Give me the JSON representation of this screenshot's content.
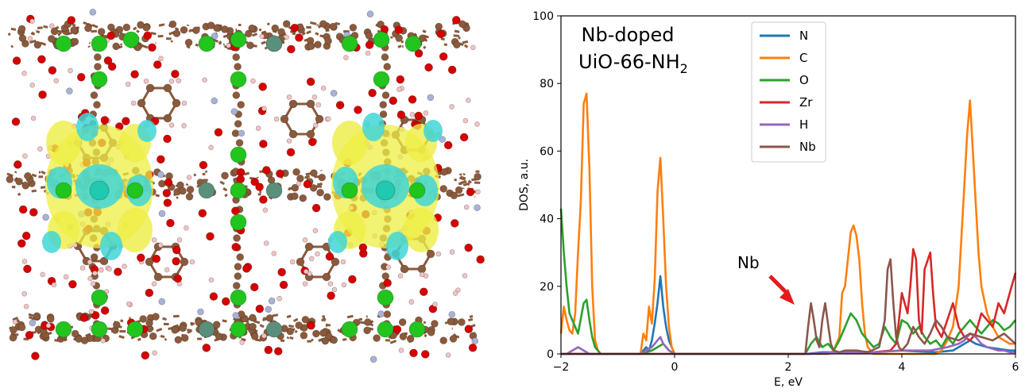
{
  "chart_data": {
    "type": "line",
    "title": "",
    "xlabel": "E, eV",
    "ylabel": "DOS, a.u.",
    "xlim": [
      -2,
      6
    ],
    "ylim": [
      0,
      100
    ],
    "xticks": [
      -2,
      0,
      2,
      4,
      6
    ],
    "yticks": [
      0,
      20,
      40,
      60,
      80,
      100
    ],
    "grid": false,
    "legend": "top-center",
    "annotation_title_main": "Nb-doped",
    "annotation_title_sub_prefix": "UiO-66-NH",
    "annotation_title_sub_subscript": "2",
    "arrow_label": "Nb",
    "arrow_color": "#e41a1c",
    "series": [
      {
        "name": "N",
        "color": "#1f77b4",
        "x": [
          -2,
          -1.5,
          -0.6,
          -0.5,
          -0.45,
          -0.4,
          -0.35,
          -0.3,
          -0.25,
          -0.2,
          -0.15,
          -0.1,
          -0.05,
          0,
          0.1,
          2.3,
          2.6,
          3.0,
          3.2,
          3.5,
          3.8,
          4.0,
          4.2,
          4.6,
          4.9,
          5.0,
          5.2,
          5.3,
          5.5,
          5.7,
          5.9,
          6.0
        ],
        "y": [
          0,
          0,
          0,
          2,
          1,
          4,
          9,
          15,
          23,
          14,
          8,
          4,
          2,
          0,
          0,
          0,
          0.5,
          0.5,
          0.8,
          0.5,
          0.8,
          1,
          0.8,
          0.5,
          1,
          2,
          4,
          3,
          2,
          1.5,
          1,
          1
        ]
      },
      {
        "name": "C",
        "color": "#ff7f0e",
        "x": [
          -2,
          -1.95,
          -1.9,
          -1.85,
          -1.8,
          -1.75,
          -1.7,
          -1.65,
          -1.6,
          -1.55,
          -1.5,
          -1.45,
          -1.4,
          -1.35,
          -1.3,
          -0.6,
          -0.55,
          -0.5,
          -0.45,
          -0.4,
          -0.35,
          -0.3,
          -0.25,
          -0.2,
          -0.15,
          -0.1,
          -0.05,
          0,
          0.1,
          2.3,
          2.7,
          2.8,
          2.9,
          2.95,
          3.0,
          3.05,
          3.1,
          3.15,
          3.2,
          3.25,
          3.3,
          3.35,
          3.4,
          3.5,
          3.6,
          3.7,
          4.6,
          4.7,
          4.8,
          4.9,
          5.0,
          5.05,
          5.1,
          5.15,
          5.2,
          5.25,
          5.3,
          5.35,
          5.4,
          5.5,
          5.6,
          5.7,
          5.8,
          5.9,
          6.0
        ],
        "y": [
          6,
          14,
          10,
          7,
          6,
          12,
          30,
          45,
          74,
          77,
          55,
          20,
          4,
          1,
          0,
          0,
          6,
          4,
          14,
          9,
          22,
          48,
          58,
          40,
          20,
          8,
          2,
          0,
          0,
          0,
          0,
          1,
          5,
          18,
          20,
          28,
          36,
          38,
          35,
          28,
          15,
          6,
          2,
          0,
          0,
          0,
          0,
          1,
          4,
          8,
          20,
          35,
          50,
          65,
          75,
          60,
          45,
          30,
          20,
          12,
          8,
          5,
          4,
          3,
          3
        ]
      },
      {
        "name": "O",
        "color": "#2ca02c",
        "x": [
          -2,
          -1.95,
          -1.9,
          -1.85,
          -1.8,
          -1.7,
          -1.6,
          -1.55,
          -1.5,
          -1.45,
          -1.4,
          -1.3,
          -0.6,
          -0.4,
          -0.3,
          -0.2,
          -0.1,
          0,
          2.3,
          2.4,
          2.5,
          2.6,
          2.7,
          2.8,
          2.9,
          3.0,
          3.1,
          3.15,
          3.2,
          3.3,
          3.4,
          3.5,
          3.6,
          3.7,
          3.8,
          3.9,
          4.0,
          4.1,
          4.2,
          4.3,
          4.4,
          4.5,
          4.6,
          4.7,
          4.8,
          4.9,
          5.0,
          5.1,
          5.2,
          5.3,
          5.4,
          5.5,
          5.6,
          5.7,
          5.8,
          5.9,
          6.0
        ],
        "y": [
          43,
          30,
          20,
          12,
          10,
          6,
          15,
          16,
          10,
          5,
          2,
          0,
          0,
          1,
          2,
          3,
          1,
          0,
          0,
          3,
          5,
          2,
          3,
          1,
          4,
          8,
          12,
          11,
          10,
          6,
          4,
          2,
          3,
          8,
          5,
          3,
          10,
          9,
          6,
          8,
          5,
          3,
          4,
          2,
          5,
          3,
          6,
          8,
          10,
          8,
          6,
          8,
          10,
          9,
          7,
          8,
          10
        ]
      },
      {
        "name": "Zr",
        "color": "#d62728",
        "x": [
          -2,
          -1.5,
          -0.6,
          0,
          2.3,
          3.5,
          3.8,
          3.9,
          3.95,
          4.0,
          4.05,
          4.1,
          4.15,
          4.2,
          4.25,
          4.3,
          4.35,
          4.4,
          4.5,
          4.55,
          4.6,
          4.7,
          4.8,
          4.9,
          5.0,
          5.1,
          5.2,
          5.3,
          5.4,
          5.5,
          5.6,
          5.7,
          5.8,
          5.9,
          6.0
        ],
        "y": [
          0,
          0,
          0,
          0,
          0,
          0.5,
          1,
          3,
          10,
          18,
          15,
          12,
          20,
          31,
          28,
          10,
          6,
          25,
          30,
          18,
          8,
          5,
          10,
          15,
          8,
          5,
          4,
          6,
          12,
          10,
          8,
          15,
          12,
          18,
          24
        ]
      },
      {
        "name": "H",
        "color": "#9467bd",
        "x": [
          -2,
          -1.9,
          -1.8,
          -1.7,
          -1.6,
          -1.5,
          -1.4,
          -0.6,
          -0.5,
          -0.4,
          -0.3,
          -0.25,
          -0.2,
          -0.1,
          0,
          2.3,
          3.0,
          3.5,
          4.0,
          4.5,
          4.8,
          5.0,
          5.1,
          5.2,
          5.3,
          5.4,
          5.5,
          5.6,
          5.7,
          5.8,
          5.9,
          6.0
        ],
        "y": [
          0,
          0,
          1,
          2,
          1,
          0,
          0,
          0,
          1,
          2,
          4,
          5,
          3,
          1,
          0,
          0,
          0.5,
          0.5,
          1,
          1,
          2,
          3,
          4,
          6,
          5,
          3,
          2,
          1.5,
          1,
          1,
          0.5,
          0.5
        ]
      },
      {
        "name": "Nb",
        "color": "#8c564b",
        "x": [
          -2,
          -1.5,
          0,
          2.2,
          2.3,
          2.35,
          2.4,
          2.45,
          2.5,
          2.55,
          2.6,
          2.65,
          2.7,
          2.75,
          2.8,
          2.9,
          3.0,
          3.2,
          3.4,
          3.6,
          3.7,
          3.75,
          3.8,
          3.85,
          3.9,
          3.95,
          4.0,
          4.1,
          4.2,
          4.3,
          4.4,
          4.5,
          4.6,
          4.7,
          4.8,
          5.0,
          5.2,
          5.4,
          5.6,
          5.8,
          6.0
        ],
        "y": [
          0,
          0,
          0,
          0,
          0,
          8,
          15,
          10,
          4,
          2,
          10,
          15,
          9,
          3,
          1,
          0.5,
          1,
          1,
          0.5,
          2,
          10,
          25,
          28,
          15,
          5,
          2,
          1,
          3,
          8,
          5,
          3,
          6,
          10,
          8,
          5,
          4,
          6,
          5,
          4,
          6,
          3
        ]
      }
    ]
  }
}
